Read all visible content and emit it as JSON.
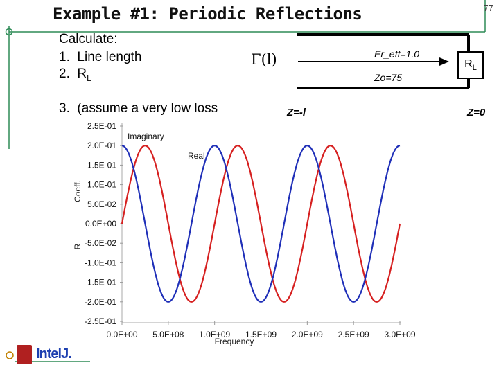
{
  "slide": {
    "title": "Example #1: Periodic Reflections",
    "page_number": "77",
    "calc_header": "Calculate:",
    "items": [
      {
        "num": "1.",
        "text": "Line length"
      },
      {
        "num": "2.",
        "text": "R",
        "sub": "L"
      },
      {
        "num": "3.",
        "text": "(assume a very low loss"
      }
    ],
    "gamma_label": "Γ(l)",
    "er_label": "Er_eff=1.0",
    "zo_label": "Zo=75",
    "rl_label": "R",
    "rl_sub": "L",
    "z_left": "Z=-l",
    "z_right": "Z=0",
    "logo_text": "IntelJ."
  },
  "chart_data": {
    "type": "line",
    "title": "",
    "xlabel": "Frequency",
    "ylabel": "Coeff.",
    "ylabel_partial": "R",
    "x_ticks": [
      "0.0E+00",
      "5.0E+08",
      "1.0E+09",
      "1.5E+09",
      "2.0E+09",
      "2.5E+09",
      "3.0E+09"
    ],
    "y_ticks": [
      "2.5E-01",
      "2.0E-01",
      "1.5E-01",
      "1.0E-01",
      "5.0E-02",
      "0.0E+00",
      "-5.0E-02",
      "-1.0E-01",
      "-1.5E-01",
      "-2.0E-01",
      "-2.5E-01"
    ],
    "xlim": [
      0,
      3000000000
    ],
    "ylim": [
      -0.25,
      0.25
    ],
    "series": [
      {
        "name": "Imaginary",
        "color": "#d62020",
        "amplitude": 0.2,
        "period": 1000000000,
        "phase_deg": 0
      },
      {
        "name": "Real",
        "color": "#1f2fb8",
        "amplitude": 0.2,
        "period": 1000000000,
        "phase_deg": 90
      }
    ]
  }
}
